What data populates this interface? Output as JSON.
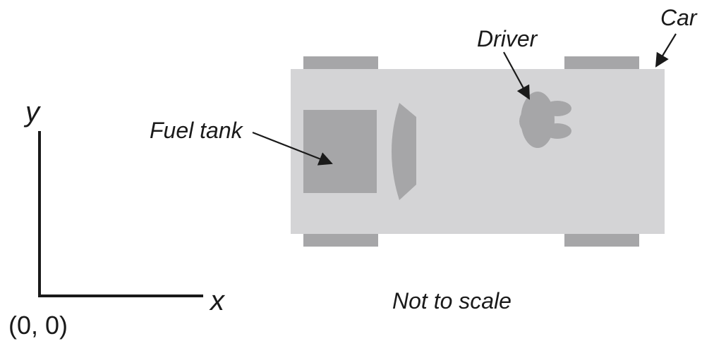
{
  "labels": {
    "y_axis": "y",
    "x_axis": "x",
    "origin": "(0, 0)",
    "fuel_tank": "Fuel tank",
    "driver": "Driver",
    "car": "Car",
    "note": "Not to scale"
  },
  "colors": {
    "car_body": "#d4d4d6",
    "wheel": "#a6a6a8",
    "fuel_tank": "#a6a6a8",
    "windshield": "#a6a6a8",
    "driver": "#a6a6a8",
    "ink": "#1a1a1a"
  }
}
